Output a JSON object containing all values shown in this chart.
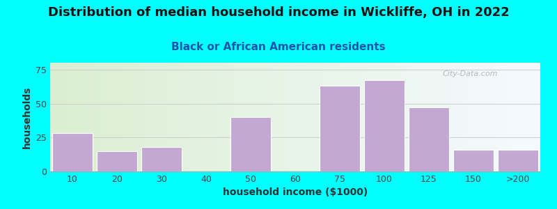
{
  "title": "Distribution of median household income in Wickliffe, OH in 2022",
  "subtitle": "Black or African American residents",
  "xlabel": "household income ($1000)",
  "ylabel": "households",
  "background_outer": "#00FFFF",
  "bar_color": "#C4A8D4",
  "categories": [
    "10",
    "20",
    "30",
    "40",
    "50",
    "60",
    "75",
    "100",
    "125",
    "150",
    ">200"
  ],
  "values": [
    28,
    15,
    18,
    0,
    40,
    0,
    63,
    67,
    47,
    16,
    16
  ],
  "yticks": [
    0,
    25,
    50,
    75
  ],
  "ylim": [
    0,
    80
  ],
  "title_fontsize": 13,
  "subtitle_fontsize": 11,
  "axis_label_fontsize": 10,
  "watermark": "City-Data.com",
  "grid_color": "#cccccc",
  "bar_edge_color": "white",
  "tick_label_color": "#444444",
  "label_color": "#333333",
  "subtitle_color": "#2255aa",
  "title_color": "#111111",
  "bg_left_color": "#d8eecc",
  "bg_right_color": "#f5faff"
}
